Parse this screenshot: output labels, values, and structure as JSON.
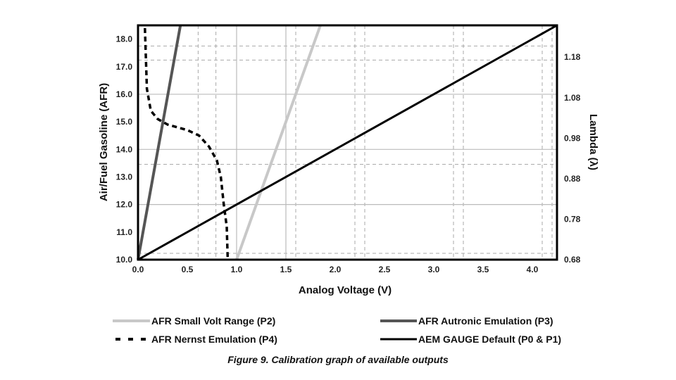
{
  "chart_data": {
    "type": "line",
    "caption": "Figure 9. Calibration graph of available outputs",
    "xlabel": "Analog Voltage (V)",
    "ylabel": "Air/Fuel Gasoline (AFR)",
    "y2label": "Lambda (λ)",
    "xlim": [
      0,
      4.25
    ],
    "ylim": [
      10,
      18.5
    ],
    "xticks": [
      "0.0",
      "0.5",
      "1.0",
      "1.5",
      "2.0",
      "2.5",
      "3.0",
      "3.5",
      "4.0"
    ],
    "yticks": [
      "10.0",
      "11.0",
      "12.0",
      "13.0",
      "14.0",
      "15.0",
      "16.0",
      "17.0",
      "18.0"
    ],
    "y2ticks": [
      "0.68",
      "0.78",
      "0.88",
      "0.98",
      "1.08",
      "1.18"
    ],
    "lambda_to_afr": 14.7,
    "grid": {
      "solid_x": [
        1.0,
        1.5
      ],
      "solid_y": [
        12,
        14,
        16
      ],
      "dashed_x": [
        0.61,
        0.79,
        1.6,
        2.2,
        2.3,
        3.2,
        3.3,
        4.1,
        4.2
      ],
      "dashed_y": [
        10.23,
        13.46,
        17.24,
        17.75
      ]
    },
    "legend_position": "bottom",
    "series": [
      {
        "name": "AFR Small Volt Range (P2)",
        "color": "#c8c8c8",
        "style": "solid",
        "x": [
          1.0,
          1.85
        ],
        "y": [
          10.0,
          18.5
        ]
      },
      {
        "name": "AFR Autronic Emulation (P3)",
        "color": "#555555",
        "style": "solid",
        "x": [
          0.0,
          0.43
        ],
        "y": [
          10.0,
          18.5
        ]
      },
      {
        "name": "AFR Nernst Emulation (P4)",
        "color": "#000000",
        "style": "dashed",
        "x": [
          0.07,
          0.08,
          0.09,
          0.13,
          0.2,
          0.3,
          0.5,
          0.62,
          0.72,
          0.8,
          0.84,
          0.87,
          0.9,
          0.91
        ],
        "y": [
          18.4,
          17.3,
          16.2,
          15.4,
          15.1,
          14.9,
          14.7,
          14.5,
          14.1,
          13.6,
          13.0,
          12.0,
          11.2,
          10.0
        ]
      },
      {
        "name": "AEM GAUGE Default (P0 & P1)",
        "color": "#000000",
        "style": "solid",
        "x": [
          0.0,
          4.25
        ],
        "y": [
          10.0,
          18.5
        ]
      }
    ]
  }
}
